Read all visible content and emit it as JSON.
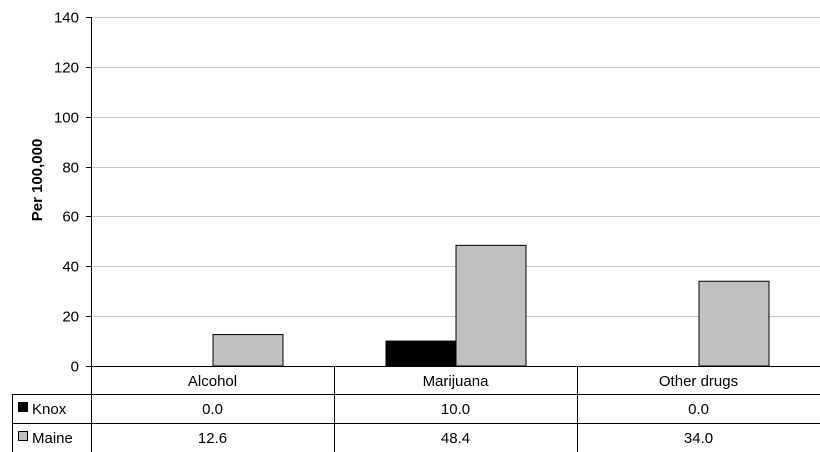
{
  "chart_data": {
    "type": "bar",
    "title": "",
    "xlabel": "",
    "ylabel": "Per 100,000",
    "ylim": [
      0,
      140
    ],
    "yticks": [
      0,
      20,
      40,
      60,
      80,
      100,
      120,
      140
    ],
    "grid": true,
    "categories": [
      "Alcohol",
      "Marijuana",
      "Other drugs"
    ],
    "series": [
      {
        "name": "Knox",
        "values": [
          0.0,
          10.0,
          0.0
        ],
        "labels": [
          "0.0",
          "10.0",
          "0.0"
        ],
        "color": "#000000"
      },
      {
        "name": "Maine",
        "values": [
          12.6,
          48.4,
          34.0
        ],
        "labels": [
          "12.6",
          "48.4",
          "34.0"
        ],
        "color": "#c0c0c0"
      }
    ],
    "data_table": true
  }
}
